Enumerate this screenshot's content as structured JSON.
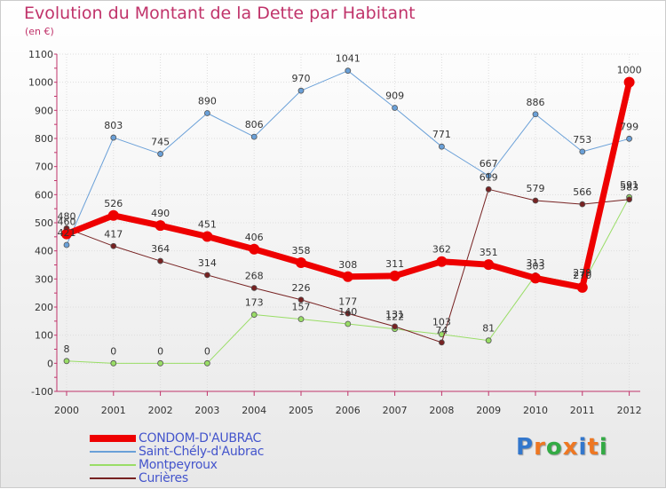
{
  "header": {
    "title": "Evolution du Montant de la Dette par Habitant",
    "unit": "(en €)"
  },
  "colors": {
    "title": "#c0336a",
    "legend_text": "#4455cc"
  },
  "logo": {
    "text": "Proxiti"
  },
  "chart_data": {
    "type": "line",
    "title": "Evolution du Montant de la Dette par Habitant",
    "ylabel": "(en €)",
    "xlabel": "",
    "ylim": [
      -100,
      1100
    ],
    "yticks": [
      -100,
      0,
      100,
      200,
      300,
      400,
      500,
      600,
      700,
      800,
      900,
      1000,
      1100
    ],
    "categories": [
      "2000",
      "2001",
      "2002",
      "2003",
      "2004",
      "2005",
      "2006",
      "2007",
      "2008",
      "2009",
      "2010",
      "2011",
      "2012"
    ],
    "grid": true,
    "legend_position": "bottom-left",
    "series": [
      {
        "name": "CONDOM-D'AUBRAC",
        "color": "#ee0000",
        "width": 7,
        "marker": 6,
        "label_dy": -10,
        "values": [
          460,
          526,
          490,
          451,
          406,
          358,
          308,
          311,
          362,
          351,
          303,
          270,
          1000
        ]
      },
      {
        "name": "Saint-Chély-d'Aubrac",
        "color": "#6aa0d8",
        "width": 1,
        "marker": 3,
        "label_dy": -10,
        "values": [
          421,
          803,
          745,
          890,
          806,
          970,
          1041,
          909,
          771,
          667,
          886,
          753,
          799
        ]
      },
      {
        "name": "Montpeyroux",
        "color": "#99dd66",
        "width": 1,
        "marker": 3,
        "label_dy": -10,
        "values": [
          8,
          0,
          0,
          0,
          173,
          157,
          140,
          122,
          103,
          81,
          313,
          279,
          591
        ]
      },
      {
        "name": "Curières",
        "color": "#772222",
        "width": 1,
        "marker": 3,
        "label_dy": -10,
        "values": [
          480,
          417,
          364,
          314,
          268,
          226,
          177,
          131,
          74,
          619,
          579,
          566,
          583
        ]
      }
    ],
    "draw_order": [
      2,
      1,
      3,
      0
    ]
  }
}
